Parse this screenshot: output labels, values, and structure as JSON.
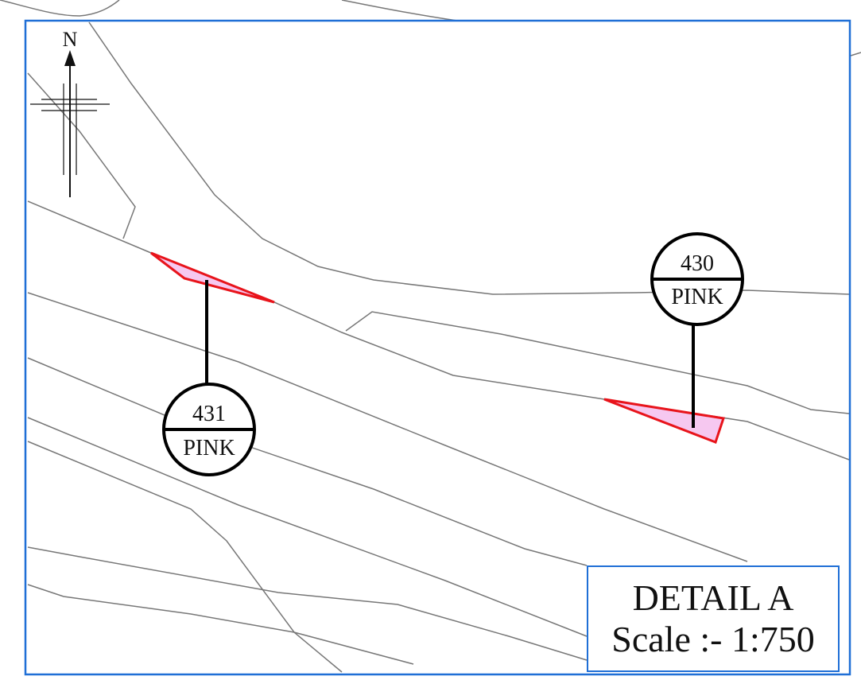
{
  "detail": {
    "title": "DETAIL A",
    "scale": "Scale :- 1:750"
  },
  "north_arrow": {
    "label": "N",
    "icon": "north-arrow-icon"
  },
  "plots": [
    {
      "number": "430",
      "category": "PINK"
    },
    {
      "number": "431",
      "category": "PINK"
    }
  ],
  "colors": {
    "frame": "#1f6fd6",
    "boundary": "#777777",
    "parcel_stroke": "#e8141b",
    "parcel_fill": "#f6c8f0",
    "callout": "#000000"
  }
}
